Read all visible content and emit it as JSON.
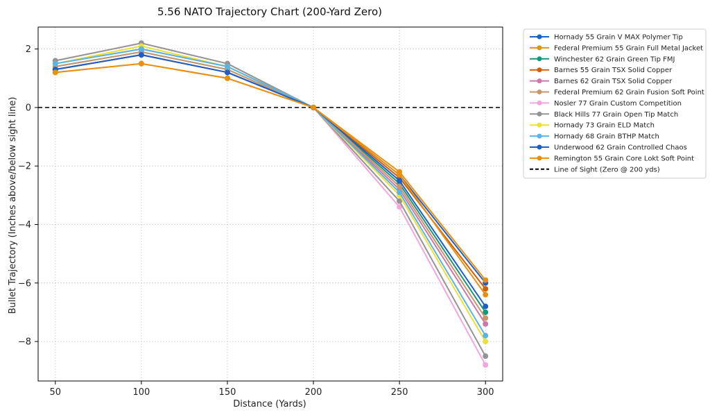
{
  "chart_data": {
    "type": "line",
    "title": "5.56 NATO Trajectory Chart (200-Yard Zero)",
    "xlabel": "Distance (Yards)",
    "ylabel": "Bullet Trajectory (Inches above/below sight line)",
    "x": [
      50,
      100,
      150,
      200,
      250,
      300
    ],
    "xlim": [
      40,
      310
    ],
    "ylim": [
      -9.35,
      2.75
    ],
    "xticks": [
      "50",
      "100",
      "150",
      "200",
      "250",
      "300"
    ],
    "yticks": [
      "2",
      "0",
      "-2",
      "-4",
      "-6",
      "-8"
    ],
    "grid": true,
    "legend_position": "outside-right",
    "reference_line": {
      "name": "Line of Sight (Zero @ 200 yds)",
      "y": 0,
      "color": "#000000",
      "style": "dashed"
    },
    "series": [
      {
        "name": "Hornady 55 Grain V MAX Polymer Tip",
        "color": "#1f5fc8",
        "values": [
          1.3,
          1.8,
          1.2,
          0,
          -2.3,
          -6.0
        ]
      },
      {
        "name": "Federal Premium 55 Grain Full Metal Jacket",
        "color": "#e8900f",
        "values": [
          1.2,
          1.5,
          1.0,
          0,
          -2.2,
          -5.9
        ]
      },
      {
        "name": "Winchester 62 Grain Green Tip FMJ",
        "color": "#16977a",
        "values": [
          1.4,
          1.9,
          1.3,
          0,
          -2.6,
          -7.0
        ]
      },
      {
        "name": "Barnes 55 Grain TSX Solid Copper",
        "color": "#d55e00",
        "values": [
          1.3,
          1.8,
          1.2,
          0,
          -2.4,
          -6.2
        ]
      },
      {
        "name": "Barnes 62 Grain TSX Solid Copper",
        "color": "#cc79a7",
        "values": [
          1.5,
          2.0,
          1.4,
          0,
          -2.8,
          -7.4
        ]
      },
      {
        "name": "Federal Premium 62 Grain Fusion Soft Point",
        "color": "#c8966a",
        "values": [
          1.4,
          1.9,
          1.3,
          0,
          -2.7,
          -7.2
        ]
      },
      {
        "name": "Nosler 77 Grain Custom Competition",
        "color": "#f4a6dc",
        "values": [
          1.6,
          2.2,
          1.5,
          0,
          -3.4,
          -8.8
        ]
      },
      {
        "name": "Black Hills 77 Grain Open Tip Match",
        "color": "#949494",
        "values": [
          1.6,
          2.2,
          1.5,
          0,
          -3.2,
          -8.5
        ]
      },
      {
        "name": "Hornady 73 Grain ELD Match",
        "color": "#ece133",
        "values": [
          1.5,
          2.1,
          1.4,
          0,
          -3.0,
          -8.0
        ]
      },
      {
        "name": "Hornady 68 Grain BTHP Match",
        "color": "#56b4e9",
        "values": [
          1.5,
          2.0,
          1.4,
          0,
          -2.9,
          -7.8
        ]
      },
      {
        "name": "Underwood 62 Grain Controlled Chaos",
        "color": "#1f5fc8",
        "values": [
          1.3,
          1.8,
          1.2,
          0,
          -2.5,
          -6.8
        ]
      },
      {
        "name": "Remington 55 Grain Core Lokt Soft Point",
        "color": "#e8900f",
        "values": [
          1.2,
          1.5,
          1.0,
          0,
          -2.3,
          -6.4
        ]
      }
    ]
  }
}
